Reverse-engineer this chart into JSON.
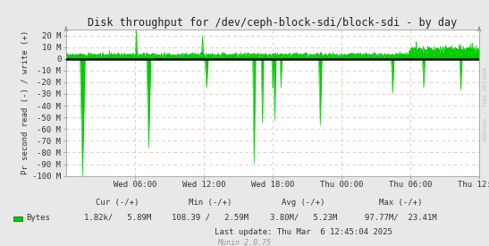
{
  "title": "Disk throughput for /dev/ceph-block-sdi/block-sdi - by day",
  "ylabel": "Pr second read (-) / write (+)",
  "background_color": "#e8e8e8",
  "plot_bg_color": "#ffffff",
  "grid_color": "#e0c0c0",
  "line_color": "#00cc00",
  "zero_line_color": "#000000",
  "border_color": "#aaaaaa",
  "title_color": "#222222",
  "text_color": "#333333",
  "ylim": [
    -100,
    25
  ],
  "yticks": [
    -100,
    -90,
    -80,
    -70,
    -60,
    -50,
    -40,
    -30,
    -20,
    -10,
    0,
    10,
    20
  ],
  "ytick_labels": [
    "-100 M",
    "-90 M",
    "-80 M",
    "-70 M",
    "-60 M",
    "-50 M",
    "-40 M",
    "-30 M",
    "-20 M",
    "-10 M",
    "0",
    "10 M",
    "20 M"
  ],
  "xtick_labels": [
    "Wed 06:00",
    "Wed 12:00",
    "Wed 18:00",
    "Thu 00:00",
    "Thu 06:00",
    "Thu 12:00"
  ],
  "munin_text": "Munin 2.0.75",
  "rrdtool_text": "RRDTOOL / TOBI OETIKER",
  "legend_label": "Bytes",
  "legend_color": "#00cc00",
  "footer_cur": "Cur (-/+)",
  "footer_min": "Min (-/+)",
  "footer_avg": "Avg (-/+)",
  "footer_max": "Max (-/+)",
  "footer_cur_val": "1.82k/   5.89M",
  "footer_min_val": "108.39 /   2.59M",
  "footer_avg_val": "3.80M/   5.23M",
  "footer_max_val": "97.77M/  23.41M",
  "footer_lastupdate": "Last update: Thu Mar  6 12:45:04 2025",
  "xtick_pos": [
    0.16667,
    0.33333,
    0.5,
    0.66667,
    0.83333,
    1.0
  ]
}
